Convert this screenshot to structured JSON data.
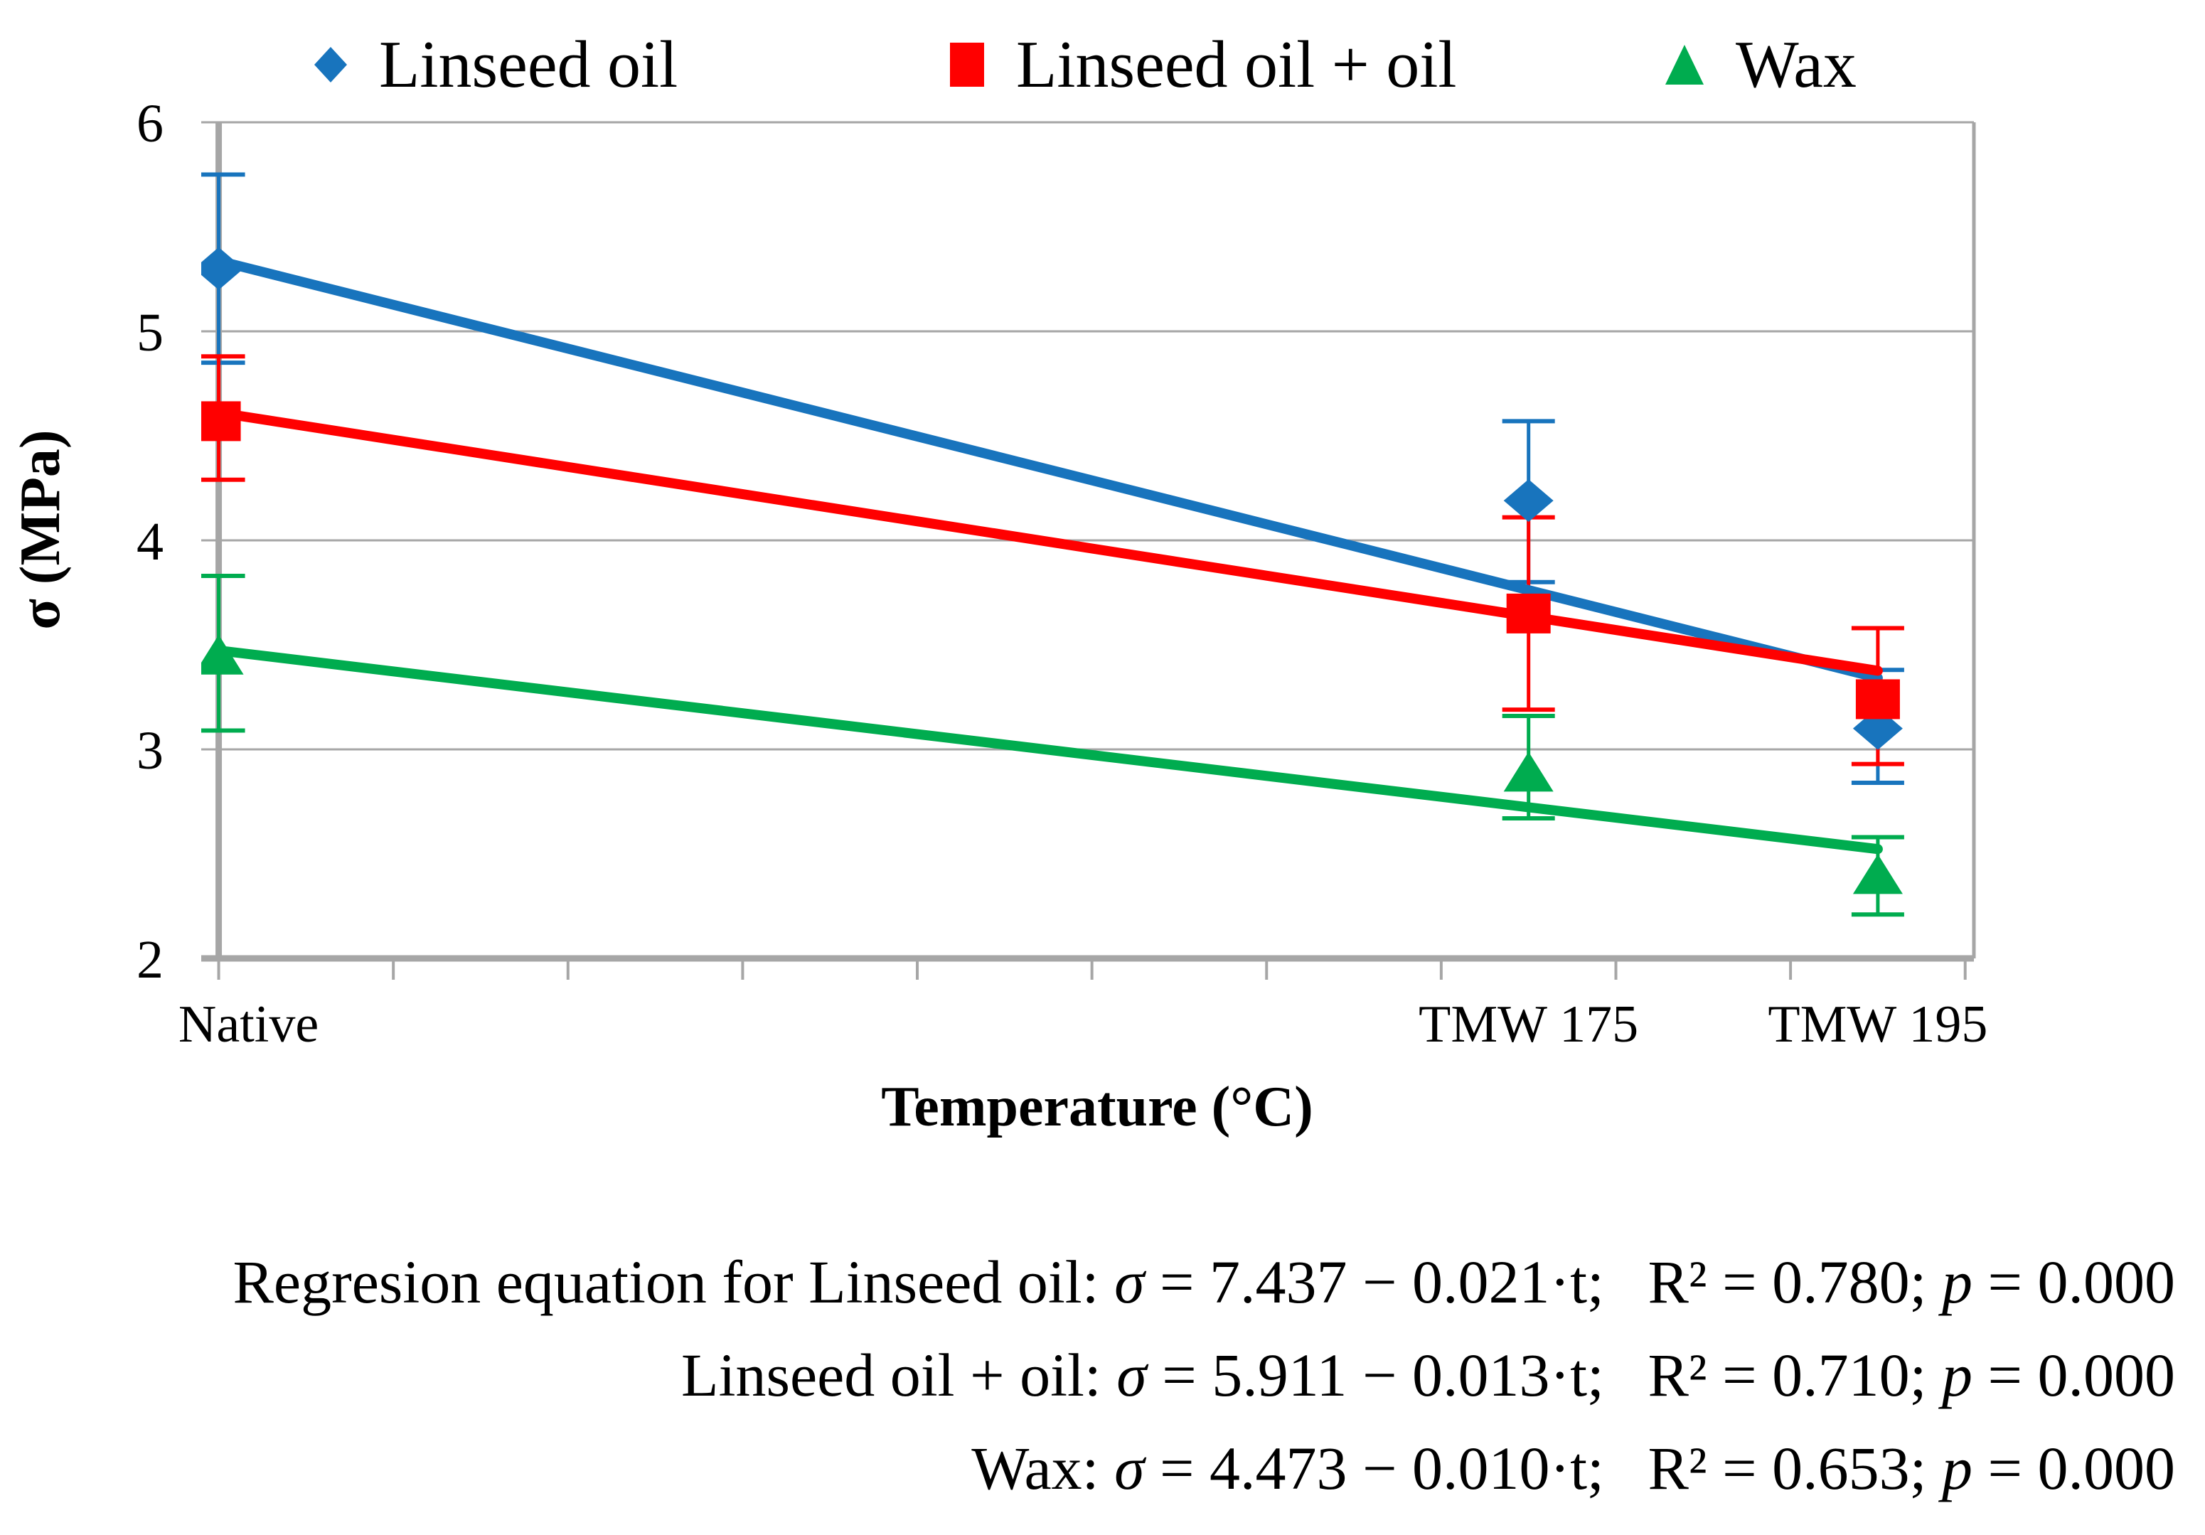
{
  "legend": {
    "items": [
      {
        "label": "Linseed oil",
        "marker": "diamond",
        "color": "#1874BD"
      },
      {
        "label": "Linseed oil + oil",
        "marker": "square",
        "color": "#FF0000"
      },
      {
        "label": "Wax",
        "marker": "triangle",
        "color": "#00AC4F"
      }
    ]
  },
  "chart_data": {
    "type": "scatter",
    "title": "",
    "xlabel": "Temperature (°C)",
    "ylabel": "σ (MPa)",
    "x_axis": {
      "label": "Temperature (°C)",
      "range": [
        99,
        200.5
      ],
      "tick_start": 100,
      "tick_step": 10,
      "tick_end": 200
    },
    "y_axis": {
      "label": "σ (MPa)",
      "range": [
        2,
        6
      ],
      "ticks": [
        2,
        3,
        4,
        5,
        6
      ]
    },
    "categories": [
      {
        "label": "Native",
        "t": 100
      },
      {
        "label": "TMW 175",
        "t": 175
      },
      {
        "label": "TMW 195",
        "t": 195
      }
    ],
    "series": [
      {
        "name": "Linseed oil",
        "marker": "diamond",
        "color": "#1874BD",
        "points": [
          {
            "t": 100,
            "y": 5.3,
            "lo": 4.85,
            "hi": 5.75
          },
          {
            "t": 175,
            "y": 4.19,
            "lo": 3.8,
            "hi": 4.57
          },
          {
            "t": 195,
            "y": 3.1,
            "lo": 2.84,
            "hi": 3.38
          }
        ],
        "trend": {
          "intercept": 7.437,
          "slope": -0.021,
          "t_start": 100,
          "t_end": 195
        }
      },
      {
        "name": "Linseed oil + oil",
        "marker": "square",
        "color": "#FF0000",
        "points": [
          {
            "t": 100,
            "y": 4.57,
            "lo": 4.29,
            "hi": 4.88
          },
          {
            "t": 175,
            "y": 3.65,
            "lo": 3.19,
            "hi": 4.11
          },
          {
            "t": 195,
            "y": 3.24,
            "lo": 2.93,
            "hi": 3.58
          }
        ],
        "trend": {
          "intercept": 5.911,
          "slope": -0.013,
          "t_start": 100,
          "t_end": 195
        }
      },
      {
        "name": "Wax",
        "marker": "triangle",
        "color": "#00AC4F",
        "points": [
          {
            "t": 100,
            "y": 3.45,
            "lo": 3.09,
            "hi": 3.83
          },
          {
            "t": 175,
            "y": 2.89,
            "lo": 2.67,
            "hi": 3.16
          },
          {
            "t": 195,
            "y": 2.4,
            "lo": 2.21,
            "hi": 2.58
          }
        ],
        "trend": {
          "intercept": 4.473,
          "slope": -0.01,
          "t_start": 100,
          "t_end": 195
        }
      }
    ],
    "gridline_color": "#A6A6A6",
    "axis_color": "#A6A6A6",
    "legend_position": "top"
  },
  "equations": {
    "lines": [
      {
        "label": "Regresion equation for Linseed oil:",
        "sigma": "σ",
        "formula": "= 7.437 − 0.021·t;",
        "r2": "R² = 0.780;",
        "p": "p",
        "p_value": "= 0.000"
      },
      {
        "label": "Linseed oil + oil:",
        "sigma": "σ",
        "formula": "= 5.911 − 0.013·t;",
        "r2": "R² = 0.710;",
        "p": "p",
        "p_value": "= 0.000"
      },
      {
        "label": "Wax:",
        "sigma": "σ",
        "formula": "= 4.473 − 0.010·t;",
        "r2": "R² = 0.653;",
        "p": "p",
        "p_value": "= 0.000"
      }
    ]
  }
}
